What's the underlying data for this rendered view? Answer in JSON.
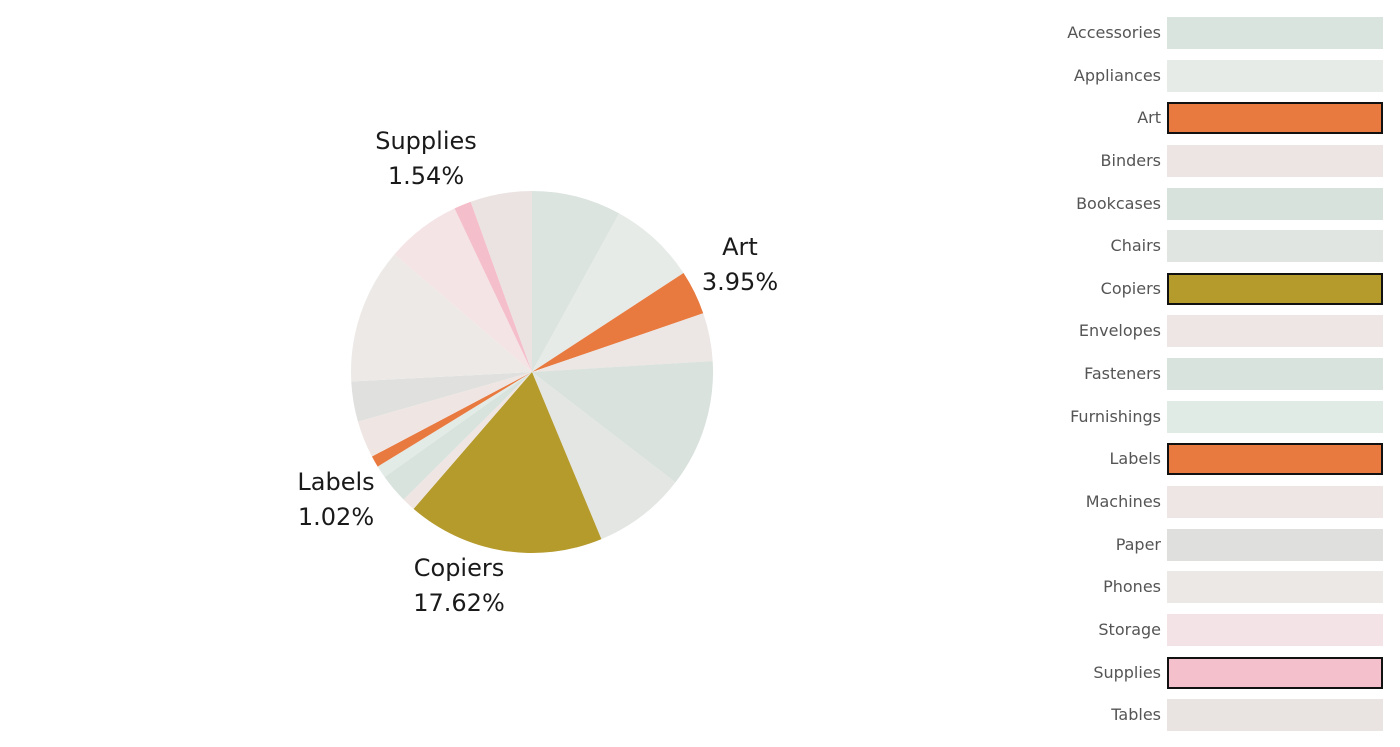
{
  "chart_data": {
    "type": "pie",
    "slices": [
      {
        "name": "Accessories",
        "value": 8.0,
        "color": "#dbe4df",
        "highlighted": false
      },
      {
        "name": "Appliances",
        "value": 7.8,
        "color": "#e7ebe8",
        "highlighted": false
      },
      {
        "name": "Art",
        "value": 3.95,
        "color": "#e8793f",
        "highlighted": true,
        "label": "Art",
        "value_label": "3.95%"
      },
      {
        "name": "Binders",
        "value": 4.3,
        "color": "#ece6e4",
        "highlighted": false
      },
      {
        "name": "Bookcases",
        "value": 11.4,
        "color": "#d9e2dd",
        "highlighted": false
      },
      {
        "name": "Chairs",
        "value": 8.3,
        "color": "#e3e6e3",
        "highlighted": false
      },
      {
        "name": "Copiers",
        "value": 17.62,
        "color": "#b59a2c",
        "highlighted": true,
        "label": "Copiers",
        "value_label": "17.62%"
      },
      {
        "name": "Envelopes",
        "value": 1.2,
        "color": "#efe6e4",
        "highlighted": false
      },
      {
        "name": "Fasteners",
        "value": 2.6,
        "color": "#d9e3dd",
        "highlighted": false
      },
      {
        "name": "Furnishings",
        "value": 1.1,
        "color": "#e3ebe7",
        "highlighted": false
      },
      {
        "name": "Labels",
        "value": 1.02,
        "color": "#e8793f",
        "highlighted": true,
        "label": "Labels",
        "value_label": "1.02%"
      },
      {
        "name": "Machines",
        "value": 3.3,
        "color": "#efe6e4",
        "highlighted": false
      },
      {
        "name": "Paper",
        "value": 3.6,
        "color": "#e0e1df",
        "highlighted": false
      },
      {
        "name": "Phones",
        "value": 12.1,
        "color": "#ede9e7",
        "highlighted": false
      },
      {
        "name": "Storage",
        "value": 6.7,
        "color": "#f4e4e6",
        "highlighted": false
      },
      {
        "name": "Supplies",
        "value": 1.54,
        "color": "#f4bfcb",
        "highlighted": true,
        "label": "Supplies",
        "value_label": "1.54%"
      },
      {
        "name": "Tables",
        "value": 5.5,
        "color": "#ebe3e1",
        "highlighted": false
      }
    ]
  },
  "legend": {
    "items": [
      {
        "label": "Accessories",
        "color": "#dae4df",
        "selected": false
      },
      {
        "label": "Appliances",
        "color": "#e6ebe8",
        "selected": false
      },
      {
        "label": "Art",
        "color": "#e8793f",
        "selected": true
      },
      {
        "label": "Binders",
        "color": "#ece5e3",
        "selected": false
      },
      {
        "label": "Bookcases",
        "color": "#d8e2dd",
        "selected": false
      },
      {
        "label": "Chairs",
        "color": "#e1e5e2",
        "selected": false
      },
      {
        "label": "Copiers",
        "color": "#b59a2c",
        "selected": true
      },
      {
        "label": "Envelopes",
        "color": "#eee6e4",
        "selected": false
      },
      {
        "label": "Fasteners",
        "color": "#d9e3de",
        "selected": false
      },
      {
        "label": "Furnishings",
        "color": "#e1ebe6",
        "selected": false
      },
      {
        "label": "Labels",
        "color": "#e8793f",
        "selected": true
      },
      {
        "label": "Machines",
        "color": "#eee6e4",
        "selected": false
      },
      {
        "label": "Paper",
        "color": "#dfe0de",
        "selected": false
      },
      {
        "label": "Phones",
        "color": "#ebe8e6",
        "selected": false
      },
      {
        "label": "Storage",
        "color": "#f3e3e6",
        "selected": false
      },
      {
        "label": "Supplies",
        "color": "#f4c0cc",
        "selected": true
      },
      {
        "label": "Tables",
        "color": "#e9e3e1",
        "selected": false
      }
    ]
  }
}
